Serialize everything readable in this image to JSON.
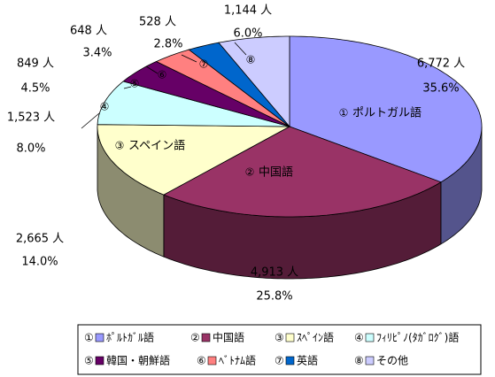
{
  "chart_data": {
    "type": "pie3d",
    "categories": [
      "ﾎﾟﾙﾄｶﾞﾙ語",
      "中国語",
      "ｽﾍﾟｲﾝ語",
      "ﾌｨﾘﾋﾟﾉ(ﾀｶﾞﾛｸﾞ)語",
      "韓国・朝鮮語",
      "ﾍﾞﾄﾅﾑ語",
      "英語",
      "その他"
    ],
    "markers": [
      "①",
      "②",
      "③",
      "④",
      "⑤",
      "⑥",
      "⑦",
      "⑧"
    ],
    "slice_labels": [
      "ポルトガル語",
      "中国語",
      "スペイン語",
      null,
      null,
      null,
      null,
      null
    ],
    "values": [
      6772,
      4913,
      2665,
      1523,
      849,
      648,
      528,
      1144
    ],
    "value_labels": [
      "6,772 人",
      "4,913 人",
      "2,665 人",
      "1,523 人",
      "849 人",
      "648 人",
      "528 人",
      "1,144 人"
    ],
    "shares": [
      35.6,
      25.8,
      14.0,
      8.0,
      4.5,
      3.4,
      2.8,
      6.0
    ],
    "share_labels": [
      "35.6%",
      "25.8%",
      "14.0%",
      "8.0%",
      "4.5%",
      "3.4%",
      "2.8%",
      "6.0%"
    ],
    "colors": [
      "#9999ff",
      "#993366",
      "#ffffcc",
      "#ccffff",
      "#660066",
      "#ff8080",
      "#0066cc",
      "#ccccff"
    ],
    "legend": "bottom"
  }
}
